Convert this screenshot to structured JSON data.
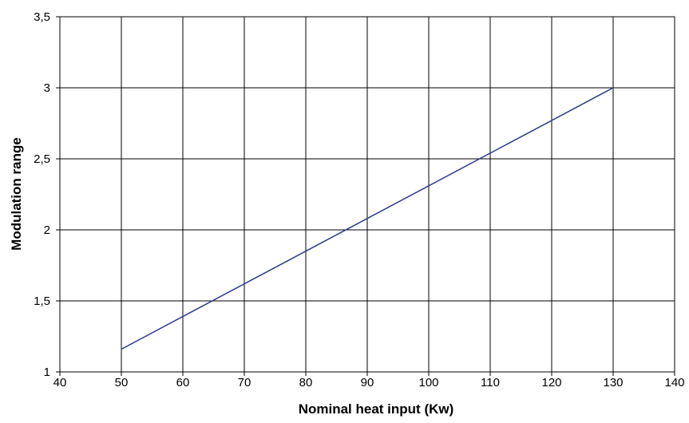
{
  "chart_data": {
    "type": "line",
    "title": "",
    "xlabel": "Nominal heat input (Kw)",
    "ylabel": "Modulation range",
    "xlim": [
      40,
      140
    ],
    "ylim": [
      1,
      3.5
    ],
    "x_ticks": [
      40,
      50,
      60,
      70,
      80,
      90,
      100,
      110,
      120,
      130,
      140
    ],
    "x_tick_labels": [
      "40",
      "50",
      "60",
      "70",
      "80",
      "90",
      "100",
      "110",
      "120",
      "130",
      "140"
    ],
    "y_ticks": [
      1,
      1.5,
      2,
      2.5,
      3,
      3.5
    ],
    "y_tick_labels": [
      "1",
      "1,5",
      "2",
      "2,5",
      "3",
      "3,5"
    ],
    "grid": true,
    "legend": "none",
    "series": [
      {
        "color": "#2b3a8c",
        "x": [
          50,
          130
        ],
        "y": [
          1.16,
          3.0
        ]
      }
    ]
  }
}
